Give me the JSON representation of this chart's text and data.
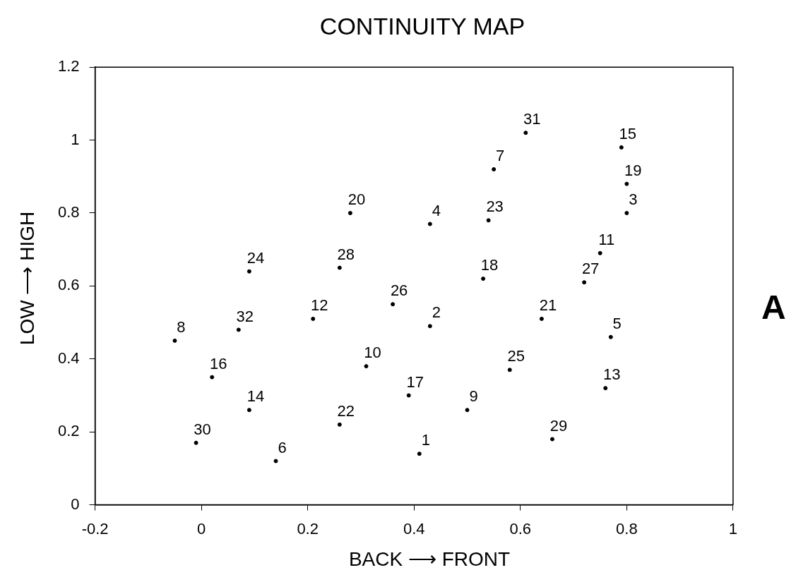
{
  "chart_data": {
    "type": "scatter",
    "title": "CONTINUITY MAP",
    "xlabel": "BACK ⟶ FRONT",
    "ylabel": "LOW ⟶ HIGH",
    "annotations": [
      "A"
    ],
    "series": [
      {
        "name": "1",
        "x": [
          0.41
        ],
        "values": [
          0.14
        ],
        "color": "#000000"
      },
      {
        "name": "2",
        "x": [
          0.43
        ],
        "values": [
          0.49
        ],
        "color": "#000000"
      },
      {
        "name": "3",
        "x": [
          0.8
        ],
        "values": [
          0.8
        ],
        "color": "#000000"
      },
      {
        "name": "4",
        "x": [
          0.43
        ],
        "values": [
          0.77
        ],
        "color": "#000000"
      },
      {
        "name": "5",
        "x": [
          0.77
        ],
        "values": [
          0.46
        ],
        "color": "#000000"
      },
      {
        "name": "6",
        "x": [
          0.14
        ],
        "values": [
          0.12
        ],
        "color": "#000000"
      },
      {
        "name": "7",
        "x": [
          0.55
        ],
        "values": [
          0.92
        ],
        "color": "#000000"
      },
      {
        "name": "8",
        "x": [
          -0.05
        ],
        "values": [
          0.45
        ],
        "color": "#000000"
      },
      {
        "name": "9",
        "x": [
          0.5
        ],
        "values": [
          0.26
        ],
        "color": "#000000"
      },
      {
        "name": "10",
        "x": [
          0.31
        ],
        "values": [
          0.38
        ],
        "color": "#000000"
      },
      {
        "name": "11",
        "x": [
          0.75
        ],
        "values": [
          0.69
        ],
        "color": "#000000"
      },
      {
        "name": "12",
        "x": [
          0.21
        ],
        "values": [
          0.51
        ],
        "color": "#000000"
      },
      {
        "name": "13",
        "x": [
          0.76
        ],
        "values": [
          0.32
        ],
        "color": "#000000"
      },
      {
        "name": "14",
        "x": [
          0.09
        ],
        "values": [
          0.26
        ],
        "color": "#000000"
      },
      {
        "name": "15",
        "x": [
          0.79
        ],
        "values": [
          0.98
        ],
        "color": "#000000"
      },
      {
        "name": "16",
        "x": [
          0.02
        ],
        "values": [
          0.35
        ],
        "color": "#000000"
      },
      {
        "name": "17",
        "x": [
          0.39
        ],
        "values": [
          0.3
        ],
        "color": "#000000"
      },
      {
        "name": "18",
        "x": [
          0.53
        ],
        "values": [
          0.62
        ],
        "color": "#000000"
      },
      {
        "name": "19",
        "x": [
          0.8
        ],
        "values": [
          0.88
        ],
        "color": "#000000"
      },
      {
        "name": "20",
        "x": [
          0.28
        ],
        "values": [
          0.8
        ],
        "color": "#000000"
      },
      {
        "name": "21",
        "x": [
          0.64
        ],
        "values": [
          0.51
        ],
        "color": "#000000"
      },
      {
        "name": "22",
        "x": [
          0.26
        ],
        "values": [
          0.22
        ],
        "color": "#000000"
      },
      {
        "name": "23",
        "x": [
          0.54
        ],
        "values": [
          0.78
        ],
        "color": "#000000"
      },
      {
        "name": "24",
        "x": [
          0.09
        ],
        "values": [
          0.64
        ],
        "color": "#000000"
      },
      {
        "name": "25",
        "x": [
          0.58
        ],
        "values": [
          0.37
        ],
        "color": "#000000"
      },
      {
        "name": "26",
        "x": [
          0.36
        ],
        "values": [
          0.55
        ],
        "color": "#000000"
      },
      {
        "name": "27",
        "x": [
          0.72
        ],
        "values": [
          0.61
        ],
        "color": "#000000"
      },
      {
        "name": "28",
        "x": [
          0.26
        ],
        "values": [
          0.65
        ],
        "color": "#000000"
      },
      {
        "name": "29",
        "x": [
          0.66
        ],
        "values": [
          0.18
        ],
        "color": "#000000"
      },
      {
        "name": "30",
        "x": [
          -0.01
        ],
        "values": [
          0.17
        ],
        "color": "#000000"
      },
      {
        "name": "31",
        "x": [
          0.61
        ],
        "values": [
          1.02
        ],
        "color": "#000000"
      },
      {
        "name": "32",
        "x": [
          0.07
        ],
        "values": [
          0.48
        ],
        "color": "#000000"
      }
    ],
    "xlim": [
      -0.2,
      1
    ],
    "xticks": [
      -0.2,
      0,
      0.2,
      0.4,
      0.6,
      0.8,
      1
    ],
    "ylim": [
      0,
      1.2
    ],
    "yticks": [
      0,
      0.2,
      0.4,
      0.6,
      0.8,
      1,
      1.2
    ],
    "marker": "circle",
    "grid": false,
    "legend": false
  }
}
